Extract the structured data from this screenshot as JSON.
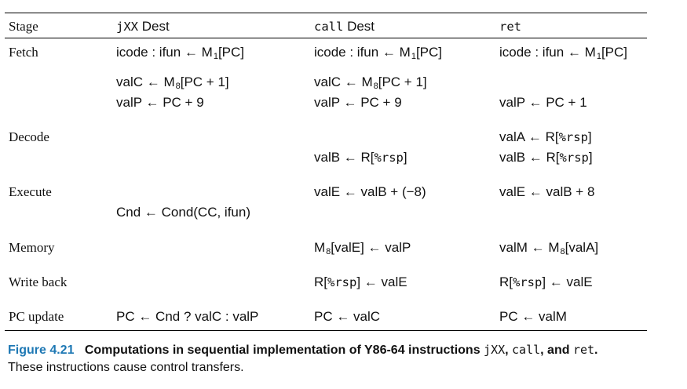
{
  "table": {
    "headers": {
      "stage": "Stage",
      "jxx_code": "jXX",
      "jxx_rest": "Dest",
      "call_code": "call",
      "call_rest": "Dest",
      "ret_code": "ret"
    },
    "stages": {
      "fetch": "Fetch",
      "decode": "Decode",
      "execute": "Execute",
      "memory": "Memory",
      "writeback": "Write back",
      "pcupdate": "PC update"
    },
    "cells": {
      "fetch_jxx_1": "icode : ifun  ←  M",
      "fetch_jxx_1_sub": "1",
      "fetch_jxx_1_tail": "[PC]",
      "fetch_call_1": "icode : ifun  ←  M",
      "fetch_call_1_sub": "1",
      "fetch_call_1_tail": "[PC]",
      "fetch_ret_1": "icode : ifun  ←  M",
      "fetch_ret_1_sub": "1",
      "fetch_ret_1_tail": "[PC]",
      "fetch_jxx_2": "valC  ←  M",
      "fetch_jxx_2_sub": "8",
      "fetch_jxx_2_tail": "[PC + 1]",
      "fetch_call_2": "valC  ←  M",
      "fetch_call_2_sub": "8",
      "fetch_call_2_tail": "[PC + 1]",
      "fetch_jxx_3": "valP  ←  PC + 9",
      "fetch_call_3": "valP  ←  PC + 9",
      "fetch_ret_3": "valP  ←  PC + 1",
      "decode_ret_1_pre": "valA  ←  R[",
      "decode_ret_1_mono": "%rsp",
      "decode_ret_1_post": "]",
      "decode_call_2_pre": "valB  ←  R[",
      "decode_call_2_mono": "%rsp",
      "decode_call_2_post": "]",
      "decode_ret_2_pre": "valB  ←  R[",
      "decode_ret_2_mono": "%rsp",
      "decode_ret_2_post": "]",
      "execute_call_1": "valE  ←  valB + (−8)",
      "execute_ret_1": "valE  ←  valB + 8",
      "execute_jxx_2": "Cnd  ←  Cond(CC, ifun)",
      "memory_call_pre": "M",
      "memory_call_sub": "8",
      "memory_call_post": "[valE]  ←  valP",
      "memory_ret_pre": "valM  ←  M",
      "memory_ret_sub": "8",
      "memory_ret_post": "[valA]",
      "writeback_call_pre": "R[",
      "writeback_call_mono": "%rsp",
      "writeback_call_post": "]  ←  valE",
      "writeback_ret_pre": "R[",
      "writeback_ret_mono": "%rsp",
      "writeback_ret_post": "]  ←  valE",
      "pcupdate_jxx": "PC  ←  Cnd ? valC : valP",
      "pcupdate_call": "PC  ←  valC",
      "pcupdate_ret": "PC  ←  valM"
    }
  },
  "caption": {
    "label": "Figure 4.21",
    "title_1": "Computations in sequential implementation of Y86-64 instructions ",
    "title_code_1": "jXX",
    "title_sep_1": ", ",
    "title_code_2": "call",
    "title_sep_2": ", and ",
    "title_code_3": "ret",
    "title_end": ".",
    "body": "These instructions cause control transfers."
  }
}
